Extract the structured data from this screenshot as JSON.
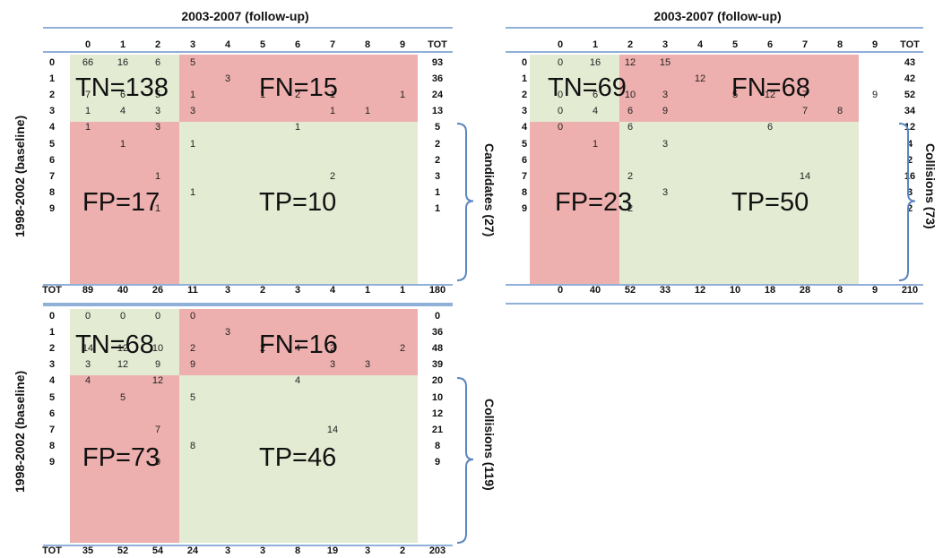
{
  "matrices": [
    {
      "title": "2003-2007 (follow-up)",
      "col_headers": [
        "0",
        "1",
        "2",
        "3",
        "4",
        "5",
        "6",
        "7",
        "8",
        "9",
        "TOT"
      ],
      "row_headers": [
        "0",
        "1",
        "2",
        "3",
        "4",
        "5",
        "6",
        "7",
        "8",
        "9"
      ],
      "row_totals": [
        "93",
        "36",
        "24",
        "13",
        "5",
        "2",
        "2",
        "3",
        "1",
        "1"
      ],
      "col_totals": [
        "89",
        "40",
        "26",
        "11",
        "3",
        "2",
        "3",
        "4",
        "1",
        "1"
      ],
      "tot_label": "TOT",
      "grand_total": "180",
      "cells": [
        [
          "66",
          "16",
          "6",
          "5",
          "",
          "",
          "",
          "",
          "",
          ""
        ],
        [
          "",
          "",
          "",
          "",
          "3",
          "",
          "",
          "",
          "",
          ""
        ],
        [
          "7",
          "6",
          "5",
          "1",
          "",
          "1",
          "2",
          "1",
          "",
          "1"
        ],
        [
          "1",
          "4",
          "3",
          "3",
          "",
          "",
          "",
          "1",
          "1",
          ""
        ],
        [
          "1",
          "",
          "3",
          "",
          "",
          "",
          "1",
          "",
          "",
          ""
        ],
        [
          "",
          "1",
          "",
          "1",
          "",
          "",
          "",
          "",
          "",
          ""
        ],
        [
          "",
          "",
          "",
          "",
          "",
          "",
          "",
          "",
          "",
          ""
        ],
        [
          "",
          "",
          "1",
          "",
          "",
          "",
          "",
          "2",
          "",
          ""
        ],
        [
          "",
          "",
          "",
          "1",
          "",
          "",
          "",
          "",
          "",
          ""
        ],
        [
          "",
          "",
          "1",
          "",
          "",
          "",
          "",
          "",
          "",
          ""
        ]
      ],
      "tn": "TN=138",
      "fn": "FN=15",
      "fp": "FP=17",
      "tp": "TP=10",
      "side_label": "1998-2002 (baseline)",
      "brace_label": "Candidates (27)"
    },
    {
      "title": "2003-2007 (follow-up)",
      "col_headers": [
        "0",
        "1",
        "2",
        "3",
        "4",
        "5",
        "6",
        "7",
        "8",
        "9",
        "TOT"
      ],
      "row_headers": [
        "0",
        "1",
        "2",
        "3",
        "4",
        "5",
        "6",
        "7",
        "8",
        "9"
      ],
      "row_totals": [
        "43",
        "42",
        "52",
        "34",
        "12",
        "4",
        "2",
        "16",
        "3",
        "2"
      ],
      "col_totals": [
        "0",
        "40",
        "52",
        "33",
        "12",
        "10",
        "18",
        "28",
        "8",
        "9"
      ],
      "grand_total": "210",
      "cells": [
        [
          "0",
          "16",
          "12",
          "15",
          "",
          "",
          "",
          "",
          "",
          ""
        ],
        [
          "",
          "",
          "",
          "",
          "12",
          "",
          "",
          "",
          "",
          ""
        ],
        [
          "0",
          "6",
          "10",
          "3",
          "",
          "5",
          "12",
          "7",
          "",
          "9"
        ],
        [
          "0",
          "4",
          "6",
          "9",
          "",
          "",
          "",
          "7",
          "8",
          ""
        ],
        [
          "0",
          "",
          "6",
          "",
          "",
          "",
          "6",
          "",
          "",
          ""
        ],
        [
          "",
          "1",
          "",
          "3",
          "",
          "",
          "",
          "",
          "",
          ""
        ],
        [
          "",
          "",
          "",
          "",
          "",
          "",
          "",
          "",
          "",
          ""
        ],
        [
          "",
          "",
          "2",
          "",
          "",
          "",
          "",
          "14",
          "",
          ""
        ],
        [
          "",
          "",
          "",
          "3",
          "",
          "",
          "",
          "",
          "",
          ""
        ],
        [
          "",
          "",
          "2",
          "",
          "",
          "",
          "",
          "",
          "",
          ""
        ]
      ],
      "tn": "TN=69",
      "fn": "FN=68",
      "fp": "FP=23",
      "tp": "TP=50",
      "brace_label": "Collisions (73)"
    },
    {
      "row_headers": [
        "0",
        "1",
        "2",
        "3",
        "4",
        "5",
        "6",
        "7",
        "8",
        "9"
      ],
      "row_totals": [
        "0",
        "36",
        "48",
        "39",
        "20",
        "10",
        "12",
        "21",
        "8",
        "9"
      ],
      "col_totals": [
        "35",
        "52",
        "54",
        "24",
        "3",
        "3",
        "8",
        "19",
        "3",
        "2"
      ],
      "tot_label": "TOT",
      "grand_total": "203",
      "cells": [
        [
          "0",
          "0",
          "0",
          "0",
          "",
          "",
          "",
          "",
          "",
          ""
        ],
        [
          "",
          "",
          "",
          "",
          "3",
          "",
          "",
          "",
          "",
          ""
        ],
        [
          "14",
          "12",
          "10",
          "2",
          "",
          "2",
          "4",
          "2",
          "",
          "2"
        ],
        [
          "3",
          "12",
          "9",
          "9",
          "",
          "",
          "",
          "3",
          "3",
          ""
        ],
        [
          "4",
          "",
          "12",
          "",
          "",
          "",
          "4",
          "",
          "",
          ""
        ],
        [
          "",
          "5",
          "",
          "5",
          "",
          "",
          "",
          "",
          "",
          ""
        ],
        [
          "",
          "",
          "",
          "",
          "",
          "",
          "",
          "",
          "",
          ""
        ],
        [
          "",
          "",
          "7",
          "",
          "",
          "",
          "",
          "14",
          "",
          ""
        ],
        [
          "",
          "",
          "",
          "8",
          "",
          "",
          "",
          "",
          "",
          ""
        ],
        [
          "",
          "",
          "9",
          "",
          "",
          "",
          "",
          "",
          "",
          ""
        ]
      ],
      "tn": "TN=68",
      "fn": "FN=16",
      "fp": "FP=73",
      "tp": "TP=46",
      "side_label": "1998-2002 (baseline)",
      "brace_label": "Collisions (119)"
    }
  ]
}
